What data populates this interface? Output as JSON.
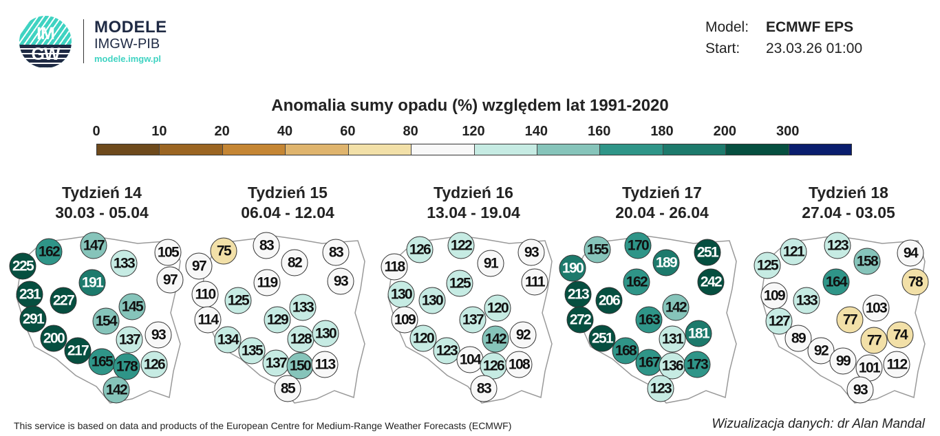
{
  "logo": {
    "circle_text_top": "IM",
    "circle_text_bottom": "GW",
    "line1": "MODELE",
    "line2": "IMGW-PIB",
    "url": "modele.imgw.pl"
  },
  "meta": {
    "model_label": "Model:",
    "model_value": "ECMWF EPS",
    "start_label": "Start:",
    "start_value": "23.03.26 01:00"
  },
  "title": "Anomalia sumy opadu (%) względem lat 1991-2020",
  "legend": {
    "labels": [
      "0",
      "10",
      "20",
      "40",
      "60",
      "80",
      "120",
      "140",
      "160",
      "180",
      "200",
      "300"
    ],
    "colors": [
      "#6e4a1c",
      "#9b6522",
      "#c58634",
      "#dfb46d",
      "#f2e0a8",
      "#f8f8f8",
      "#c6ebe3",
      "#86c4ba",
      "#2f9588",
      "#1d7a6c",
      "#064f40",
      "#0a1e6e"
    ]
  },
  "weeks": [
    {
      "title": "Tydzień 14",
      "dates": "30.03 - 05.04",
      "values": [
        162,
        147,
        133,
        105,
        225,
        97,
        191,
        231,
        227,
        145,
        154,
        291,
        137,
        93,
        200,
        217,
        165,
        178,
        126,
        142
      ]
    },
    {
      "title": "Tydzień 15",
      "dates": "06.04 - 12.04",
      "values": [
        75,
        83,
        97,
        82,
        83,
        119,
        93,
        110,
        125,
        133,
        129,
        114,
        134,
        128,
        130,
        135,
        137,
        150,
        113,
        85
      ]
    },
    {
      "title": "Tydzień 16",
      "dates": "13.04 - 19.04",
      "values": [
        126,
        122,
        118,
        91,
        93,
        125,
        111,
        130,
        130,
        120,
        109,
        137,
        142,
        92,
        120,
        123,
        104,
        126,
        108,
        83
      ]
    },
    {
      "title": "Tydzień 17",
      "dates": "20.04 - 26.04",
      "values": [
        155,
        170,
        190,
        189,
        251,
        162,
        242,
        213,
        206,
        142,
        163,
        272,
        251,
        131,
        181,
        168,
        167,
        136,
        173,
        123
      ]
    },
    {
      "title": "Tydzień 18",
      "dates": "27.04 - 03.05",
      "values": [
        121,
        123,
        125,
        158,
        94,
        109,
        133,
        164,
        78,
        127,
        77,
        103,
        89,
        92,
        77,
        74,
        99,
        101,
        112,
        93
      ]
    }
  ],
  "footer": {
    "left": "This service is based on data and products of the European Centre for Medium-Range Weather Forecasts (ECMWF)",
    "right": "Wizualizacja danych: dr Alan Mandal"
  }
}
